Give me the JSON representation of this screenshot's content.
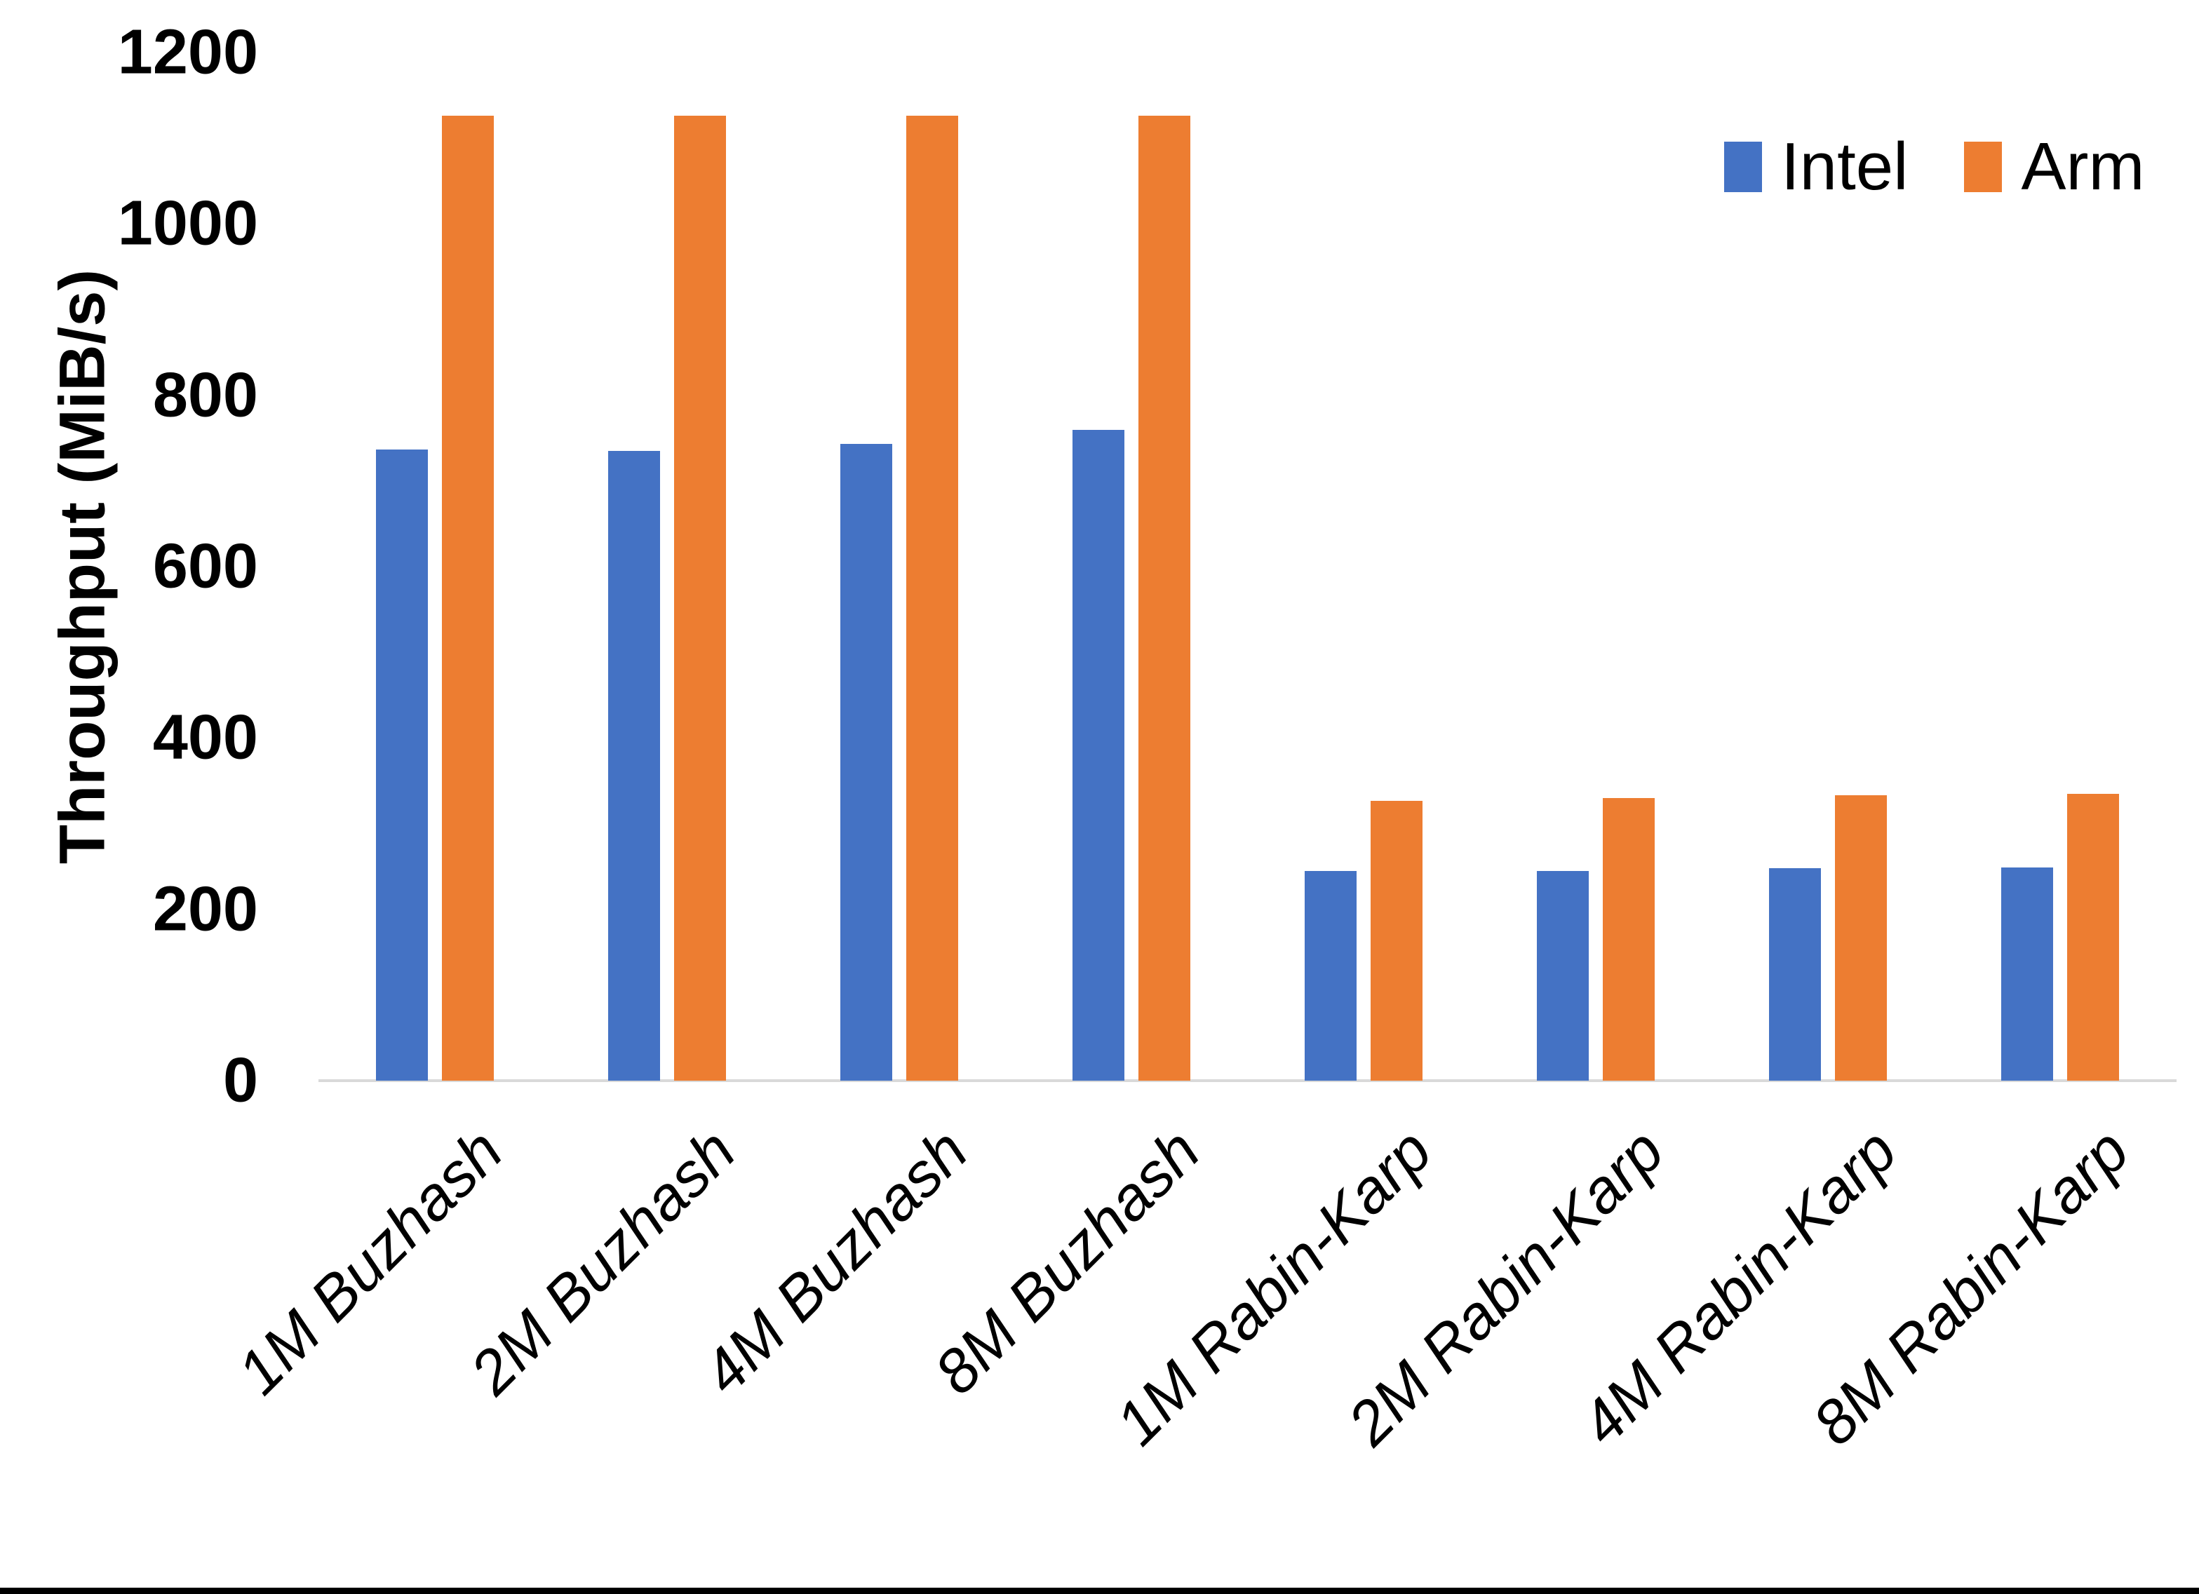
{
  "chart_data": {
    "type": "bar",
    "title": "",
    "ylabel": "Throughput (MiB/s)",
    "xlabel": "",
    "categories": [
      "1M Buzhash",
      "2M Buzhash",
      "4M Buzhash",
      "8M Buzhash",
      "1M Rabin-Karp",
      "2M Rabin-Karp",
      "4M Rabin-Karp",
      "8M Rabin-Karp"
    ],
    "series": [
      {
        "name": "Intel",
        "color": "#4472C4",
        "values": [
          737,
          735,
          743,
          760,
          245,
          245,
          248,
          249
        ]
      },
      {
        "name": "Arm",
        "color": "#ED7D31",
        "values": [
          1126,
          1126,
          1126,
          1126,
          327,
          330,
          333,
          335
        ]
      }
    ],
    "ylim": [
      0,
      1200
    ],
    "ytick_step": 200,
    "ytick_labels": [
      "0",
      "200",
      "400",
      "600",
      "800",
      "1000",
      "1200"
    ],
    "grid": false,
    "legend_position": "top-right"
  },
  "colors": {
    "background": "#FFFFFF",
    "axis_line": "#D9D9D9",
    "text": "#000000",
    "bottom_border": "#000000"
  }
}
